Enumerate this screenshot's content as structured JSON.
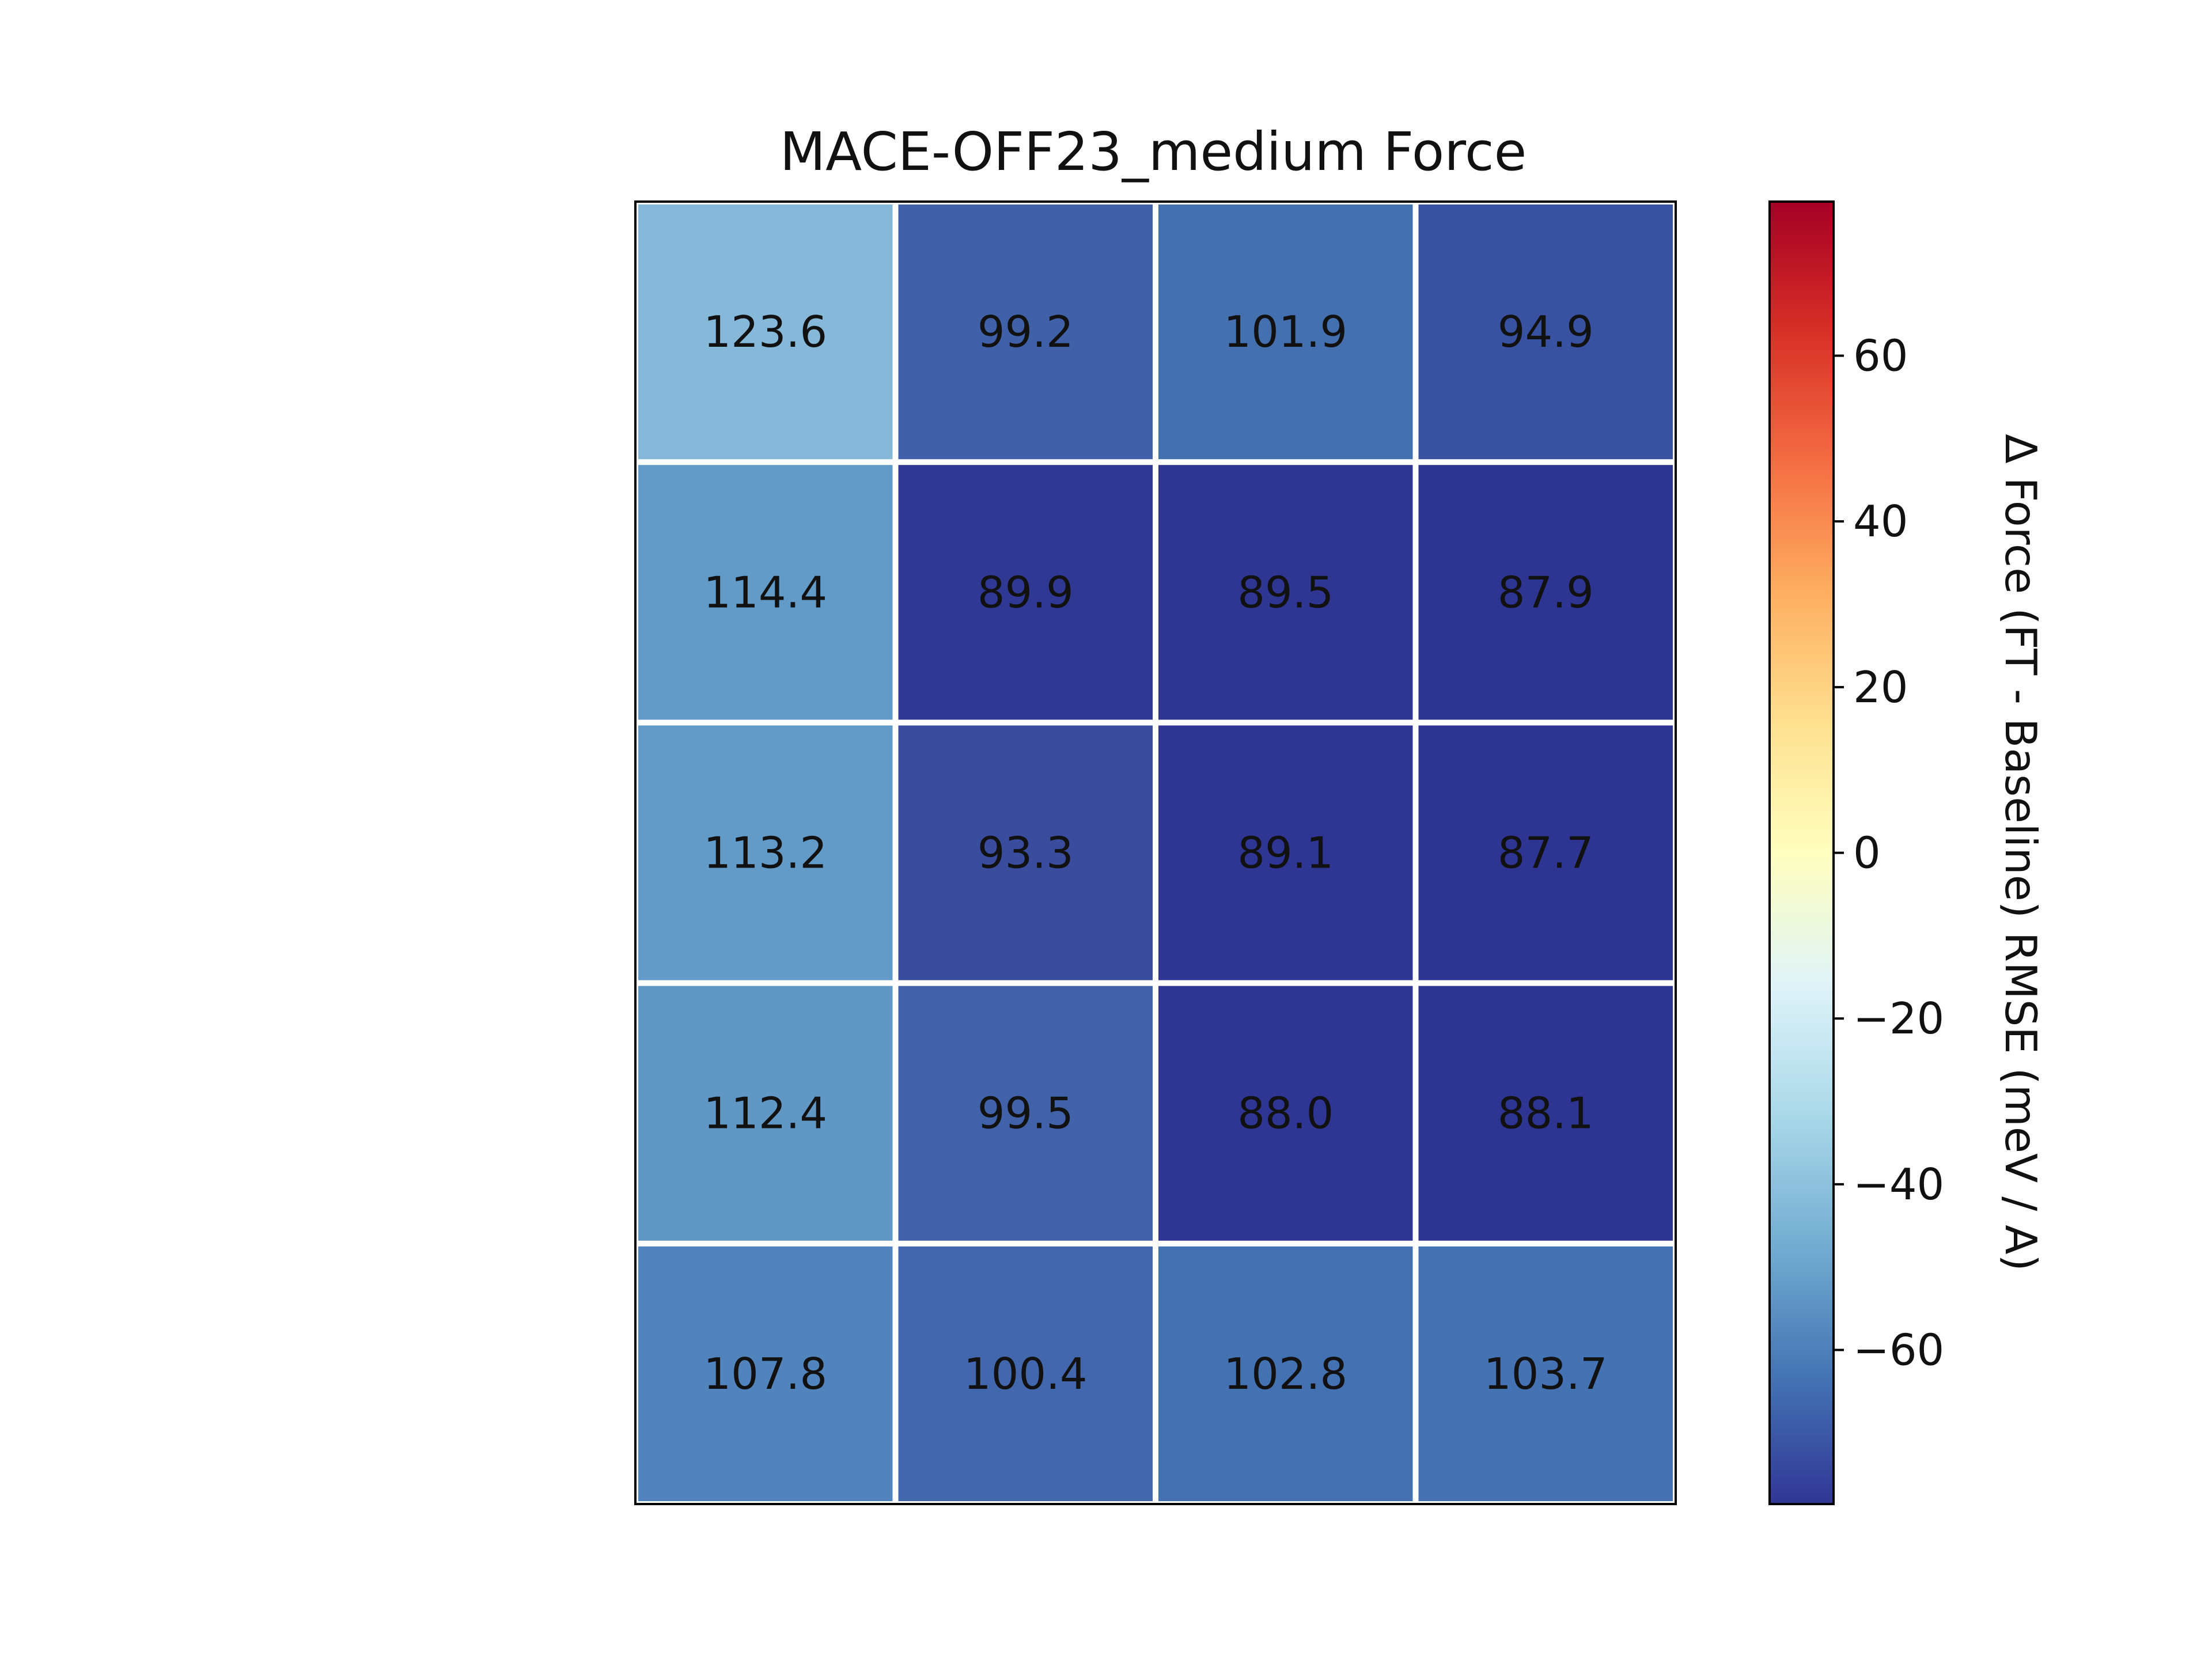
{
  "chart_data": {
    "type": "heatmap",
    "title": "MACE-OFF23_medium Force",
    "rows": 5,
    "cols": 4,
    "values": [
      [
        123.6,
        99.2,
        101.9,
        94.9
      ],
      [
        114.4,
        89.9,
        89.5,
        87.9
      ],
      [
        113.2,
        93.3,
        89.1,
        87.7
      ],
      [
        112.4,
        99.5,
        88.0,
        88.1
      ],
      [
        107.8,
        100.4,
        102.8,
        103.7
      ]
    ],
    "labels": [
      [
        "123.6",
        "99.2",
        "101.9",
        "94.9"
      ],
      [
        "114.4",
        "89.9",
        "89.5",
        "87.9"
      ],
      [
        "113.2",
        "93.3",
        "89.1",
        "87.7"
      ],
      [
        "112.4",
        "99.5",
        "88.0",
        "88.1"
      ],
      [
        "107.8",
        "100.4",
        "102.8",
        "103.7"
      ]
    ],
    "colors": [
      [
        "#86b9d9",
        "#4061a8",
        "#4470b0",
        "#3852a1"
      ],
      [
        "#629bc7",
        "#2f3892",
        "#2f3692",
        "#2e3491"
      ],
      [
        "#629bc7",
        "#394c9e",
        "#2e3592",
        "#2e3491"
      ],
      [
        "#6197c5",
        "#4162a9",
        "#2e3592",
        "#2e3491"
      ],
      [
        "#5183bd",
        "#4367ac",
        "#4471b2",
        "#4472b3"
      ]
    ],
    "colorbar": {
      "label": "Δ Force (FT - Baseline) RMSE (meV / A)",
      "range": [
        -78.6,
        78.6
      ],
      "ticks": [
        -60,
        -40,
        -20,
        0,
        20,
        40,
        60
      ],
      "tick_labels": [
        "−60",
        "−40",
        "−20",
        "0",
        "20",
        "40",
        "60"
      ],
      "colormap": "RdYlBu_r",
      "stops": [
        "#313695",
        "#4575b4",
        "#74add1",
        "#abd9e9",
        "#e0f3f8",
        "#ffffbf",
        "#fee090",
        "#fdae61",
        "#f46d43",
        "#d73027",
        "#a50026"
      ]
    },
    "grid": false,
    "xticks": [],
    "yticks": []
  }
}
